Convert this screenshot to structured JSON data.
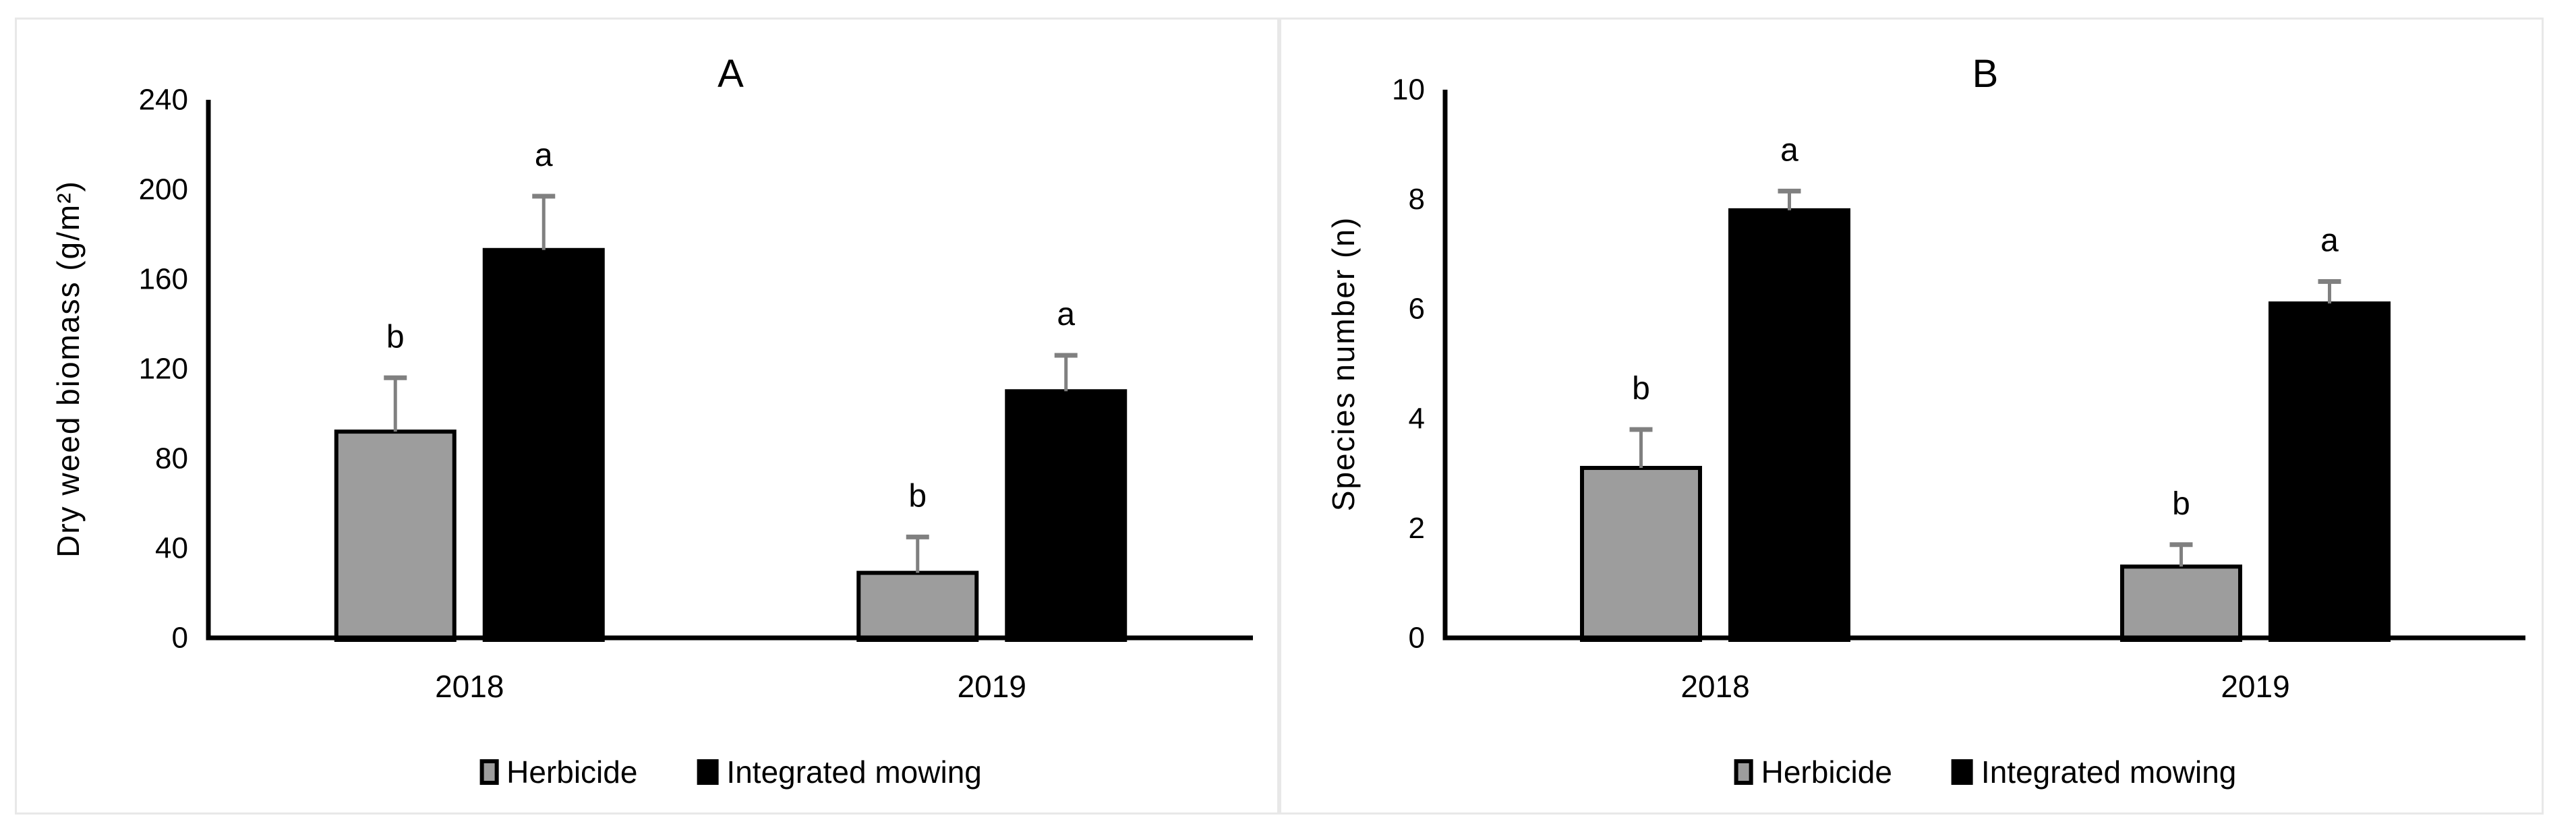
{
  "figure": {
    "background": "#ffffff",
    "panel_border_color": "#e8e8e8",
    "axis_color": "#000000",
    "error_bar_color": "#808080",
    "text_color": "#000000"
  },
  "chart_data": [
    {
      "type": "bar",
      "title": "A",
      "xlabel": "",
      "ylabel": "Dry weed biomass (g/m²)",
      "categories": [
        "2018",
        "2019"
      ],
      "series": [
        {
          "name": "Herbicide",
          "values": [
            92,
            29
          ],
          "errors": [
            24,
            16
          ],
          "sig_letters": [
            "b",
            "b"
          ],
          "fill": "#9d9d9d",
          "outline": "#000000"
        },
        {
          "name": "Integrated mowing",
          "values": [
            173,
            110
          ],
          "errors": [
            24,
            16
          ],
          "sig_letters": [
            "a",
            "a"
          ],
          "fill": "#000000",
          "outline": "#000000"
        }
      ],
      "ylim": [
        0,
        240
      ],
      "yticks": [
        0,
        40,
        80,
        120,
        160,
        200,
        240
      ],
      "grid": false,
      "legend_position": "bottom"
    },
    {
      "type": "bar",
      "title": "B",
      "xlabel": "",
      "ylabel": "Species number (n)",
      "categories": [
        "2018",
        "2019"
      ],
      "series": [
        {
          "name": "Herbicide",
          "values": [
            3.1,
            1.3
          ],
          "errors": [
            0.7,
            0.4
          ],
          "sig_letters": [
            "b",
            "b"
          ],
          "fill": "#9d9d9d",
          "outline": "#000000"
        },
        {
          "name": "Integrated mowing",
          "values": [
            7.8,
            6.1
          ],
          "errors": [
            0.35,
            0.4
          ],
          "sig_letters": [
            "a",
            "a"
          ],
          "fill": "#000000",
          "outline": "#000000"
        }
      ],
      "ylim": [
        0,
        10
      ],
      "yticks": [
        0,
        2,
        4,
        6,
        8,
        10
      ],
      "grid": false,
      "legend_position": "bottom"
    }
  ]
}
